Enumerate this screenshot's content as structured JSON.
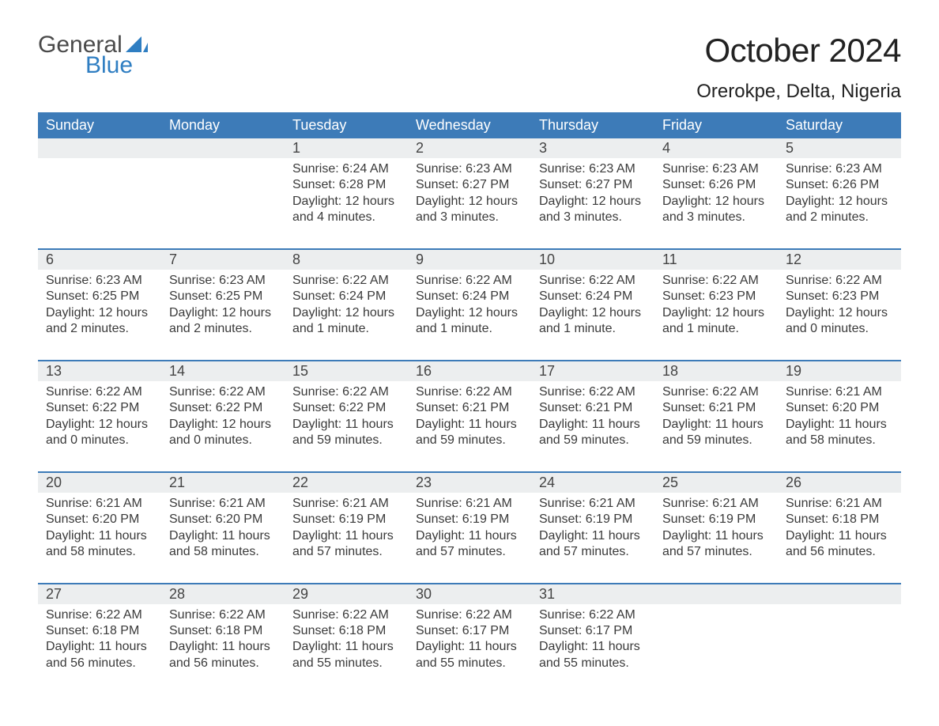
{
  "brand": {
    "word1": "General",
    "word2": "Blue",
    "sail_color": "#2f7ec2",
    "text_color": "#4a4a4a"
  },
  "title": "October 2024",
  "location": "Orerokpe, Delta, Nigeria",
  "colors": {
    "header_bg": "#3d7bb8",
    "header_text": "#ffffff",
    "daynum_bg": "#eceeef",
    "week_border": "#3d7bb8",
    "body_text": "#3a3a3a",
    "page_bg": "#ffffff"
  },
  "fonts": {
    "title_size_pt": 42,
    "location_size_pt": 24,
    "weekday_size_pt": 18,
    "daynum_size_pt": 18,
    "body_size_pt": 16
  },
  "weekdays": [
    "Sunday",
    "Monday",
    "Tuesday",
    "Wednesday",
    "Thursday",
    "Friday",
    "Saturday"
  ],
  "weeks": [
    [
      {
        "n": "",
        "lines": []
      },
      {
        "n": "",
        "lines": []
      },
      {
        "n": "1",
        "lines": [
          "Sunrise: 6:24 AM",
          "Sunset: 6:28 PM",
          "Daylight: 12 hours",
          "and 4 minutes."
        ]
      },
      {
        "n": "2",
        "lines": [
          "Sunrise: 6:23 AM",
          "Sunset: 6:27 PM",
          "Daylight: 12 hours",
          "and 3 minutes."
        ]
      },
      {
        "n": "3",
        "lines": [
          "Sunrise: 6:23 AM",
          "Sunset: 6:27 PM",
          "Daylight: 12 hours",
          "and 3 minutes."
        ]
      },
      {
        "n": "4",
        "lines": [
          "Sunrise: 6:23 AM",
          "Sunset: 6:26 PM",
          "Daylight: 12 hours",
          "and 3 minutes."
        ]
      },
      {
        "n": "5",
        "lines": [
          "Sunrise: 6:23 AM",
          "Sunset: 6:26 PM",
          "Daylight: 12 hours",
          "and 2 minutes."
        ]
      }
    ],
    [
      {
        "n": "6",
        "lines": [
          "Sunrise: 6:23 AM",
          "Sunset: 6:25 PM",
          "Daylight: 12 hours",
          "and 2 minutes."
        ]
      },
      {
        "n": "7",
        "lines": [
          "Sunrise: 6:23 AM",
          "Sunset: 6:25 PM",
          "Daylight: 12 hours",
          "and 2 minutes."
        ]
      },
      {
        "n": "8",
        "lines": [
          "Sunrise: 6:22 AM",
          "Sunset: 6:24 PM",
          "Daylight: 12 hours",
          "and 1 minute."
        ]
      },
      {
        "n": "9",
        "lines": [
          "Sunrise: 6:22 AM",
          "Sunset: 6:24 PM",
          "Daylight: 12 hours",
          "and 1 minute."
        ]
      },
      {
        "n": "10",
        "lines": [
          "Sunrise: 6:22 AM",
          "Sunset: 6:24 PM",
          "Daylight: 12 hours",
          "and 1 minute."
        ]
      },
      {
        "n": "11",
        "lines": [
          "Sunrise: 6:22 AM",
          "Sunset: 6:23 PM",
          "Daylight: 12 hours",
          "and 1 minute."
        ]
      },
      {
        "n": "12",
        "lines": [
          "Sunrise: 6:22 AM",
          "Sunset: 6:23 PM",
          "Daylight: 12 hours",
          "and 0 minutes."
        ]
      }
    ],
    [
      {
        "n": "13",
        "lines": [
          "Sunrise: 6:22 AM",
          "Sunset: 6:22 PM",
          "Daylight: 12 hours",
          "and 0 minutes."
        ]
      },
      {
        "n": "14",
        "lines": [
          "Sunrise: 6:22 AM",
          "Sunset: 6:22 PM",
          "Daylight: 12 hours",
          "and 0 minutes."
        ]
      },
      {
        "n": "15",
        "lines": [
          "Sunrise: 6:22 AM",
          "Sunset: 6:22 PM",
          "Daylight: 11 hours",
          "and 59 minutes."
        ]
      },
      {
        "n": "16",
        "lines": [
          "Sunrise: 6:22 AM",
          "Sunset: 6:21 PM",
          "Daylight: 11 hours",
          "and 59 minutes."
        ]
      },
      {
        "n": "17",
        "lines": [
          "Sunrise: 6:22 AM",
          "Sunset: 6:21 PM",
          "Daylight: 11 hours",
          "and 59 minutes."
        ]
      },
      {
        "n": "18",
        "lines": [
          "Sunrise: 6:22 AM",
          "Sunset: 6:21 PM",
          "Daylight: 11 hours",
          "and 59 minutes."
        ]
      },
      {
        "n": "19",
        "lines": [
          "Sunrise: 6:21 AM",
          "Sunset: 6:20 PM",
          "Daylight: 11 hours",
          "and 58 minutes."
        ]
      }
    ],
    [
      {
        "n": "20",
        "lines": [
          "Sunrise: 6:21 AM",
          "Sunset: 6:20 PM",
          "Daylight: 11 hours",
          "and 58 minutes."
        ]
      },
      {
        "n": "21",
        "lines": [
          "Sunrise: 6:21 AM",
          "Sunset: 6:20 PM",
          "Daylight: 11 hours",
          "and 58 minutes."
        ]
      },
      {
        "n": "22",
        "lines": [
          "Sunrise: 6:21 AM",
          "Sunset: 6:19 PM",
          "Daylight: 11 hours",
          "and 57 minutes."
        ]
      },
      {
        "n": "23",
        "lines": [
          "Sunrise: 6:21 AM",
          "Sunset: 6:19 PM",
          "Daylight: 11 hours",
          "and 57 minutes."
        ]
      },
      {
        "n": "24",
        "lines": [
          "Sunrise: 6:21 AM",
          "Sunset: 6:19 PM",
          "Daylight: 11 hours",
          "and 57 minutes."
        ]
      },
      {
        "n": "25",
        "lines": [
          "Sunrise: 6:21 AM",
          "Sunset: 6:19 PM",
          "Daylight: 11 hours",
          "and 57 minutes."
        ]
      },
      {
        "n": "26",
        "lines": [
          "Sunrise: 6:21 AM",
          "Sunset: 6:18 PM",
          "Daylight: 11 hours",
          "and 56 minutes."
        ]
      }
    ],
    [
      {
        "n": "27",
        "lines": [
          "Sunrise: 6:22 AM",
          "Sunset: 6:18 PM",
          "Daylight: 11 hours",
          "and 56 minutes."
        ]
      },
      {
        "n": "28",
        "lines": [
          "Sunrise: 6:22 AM",
          "Sunset: 6:18 PM",
          "Daylight: 11 hours",
          "and 56 minutes."
        ]
      },
      {
        "n": "29",
        "lines": [
          "Sunrise: 6:22 AM",
          "Sunset: 6:18 PM",
          "Daylight: 11 hours",
          "and 55 minutes."
        ]
      },
      {
        "n": "30",
        "lines": [
          "Sunrise: 6:22 AM",
          "Sunset: 6:17 PM",
          "Daylight: 11 hours",
          "and 55 minutes."
        ]
      },
      {
        "n": "31",
        "lines": [
          "Sunrise: 6:22 AM",
          "Sunset: 6:17 PM",
          "Daylight: 11 hours",
          "and 55 minutes."
        ]
      },
      {
        "n": "",
        "lines": []
      },
      {
        "n": "",
        "lines": []
      }
    ]
  ]
}
